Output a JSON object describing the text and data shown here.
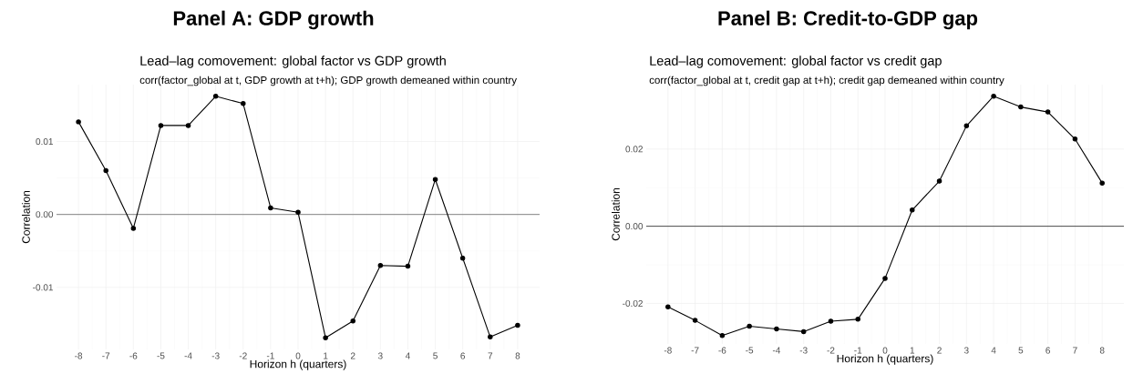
{
  "chart_data": [
    {
      "type": "line",
      "title": "Panel A: GDP growth",
      "subtitle": "Lead–lag comovement: global factor vs GDP growth",
      "annotations": [
        "corr(factor_global at t, GDP growth at t+h); GDP growth demeaned within country"
      ],
      "xlabel": "Horizon h (quarters)",
      "ylabel": "Correlation",
      "x": [
        -8,
        -7,
        -6,
        -5,
        -4,
        -3,
        -2,
        -1,
        0,
        1,
        2,
        3,
        4,
        5,
        6,
        7,
        8
      ],
      "series": [
        {
          "color": "#000000",
          "values": [
            0.0127,
            0.006,
            -0.0019,
            0.0122,
            0.0122,
            0.0162,
            0.0152,
            0.0009,
            0.0003,
            -0.0169,
            -0.0146,
            -0.007,
            -0.0071,
            0.0048,
            -0.006,
            -0.0168,
            -0.0152
          ]
        }
      ],
      "xlim": [
        -8.8,
        8.8
      ],
      "ylim": [
        -0.0185,
        0.0178
      ],
      "xticks": [
        -8,
        -7,
        -6,
        -5,
        -4,
        -3,
        -2,
        -1,
        0,
        1,
        2,
        3,
        4,
        5,
        6,
        7,
        8
      ],
      "yticks": [
        -0.01,
        {
          "value": 0,
          "label": "0.00"
        },
        0.01
      ],
      "ref_lines": [
        {
          "axis": "y",
          "value": 0,
          "color": "#555555"
        }
      ],
      "grid": true,
      "marker": "circle",
      "line_style": "solid"
    },
    {
      "type": "line",
      "title": "Panel B: Credit-to-GDP gap",
      "subtitle": "Lead–lag comovement: global factor vs credit gap",
      "annotations": [
        "corr(factor_global at t, credit gap at t+h); credit gap demeaned within country"
      ],
      "xlabel": "Horizon h (quarters)",
      "ylabel": "Correlation",
      "x": [
        -8,
        -7,
        -6,
        -5,
        -4,
        -3,
        -2,
        -1,
        0,
        1,
        2,
        3,
        4,
        5,
        6,
        7,
        8
      ],
      "series": [
        {
          "color": "#000000",
          "values": [
            -0.0209,
            -0.0244,
            -0.0283,
            -0.0259,
            -0.0266,
            -0.0273,
            -0.0246,
            -0.0241,
            -0.0135,
            0.0042,
            0.0117,
            0.026,
            0.0337,
            0.0309,
            0.0296,
            0.0226,
            0.0112
          ]
        }
      ],
      "xlim": [
        -8.8,
        8.8
      ],
      "ylim": [
        -0.0305,
        0.0367
      ],
      "xticks": [
        -8,
        -7,
        -6,
        -5,
        -4,
        -3,
        -2,
        -1,
        0,
        1,
        2,
        3,
        4,
        5,
        6,
        7,
        8
      ],
      "yticks": [
        -0.02,
        {
          "value": 0,
          "label": "0.00"
        },
        0.02
      ],
      "ref_lines": [
        {
          "axis": "y",
          "value": 0,
          "color": "#000000"
        }
      ],
      "grid": true,
      "marker": "circle",
      "line_style": "solid"
    }
  ]
}
